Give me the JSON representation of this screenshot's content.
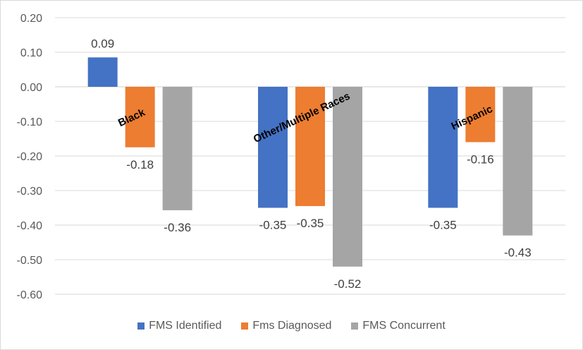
{
  "chart_data": {
    "type": "bar",
    "title": "",
    "xlabel": "",
    "ylabel": "",
    "ylim": [
      -0.6,
      0.2
    ],
    "y_ticks": [
      "0.20",
      "0.10",
      "0.00",
      "-0.10",
      "-0.20",
      "-0.30",
      "-0.40",
      "-0.50",
      "-0.60"
    ],
    "categories": [
      "Black",
      "Other/Multiple Races",
      "Hispanic"
    ],
    "series": [
      {
        "name": "FMS Identified",
        "color": "#4472C4",
        "values": [
          0.085,
          -0.35,
          -0.35
        ],
        "labels": [
          "0.09",
          "-0.35",
          "-0.35"
        ]
      },
      {
        "name": "Fms Diagnosed",
        "color": "#ED7D31",
        "values": [
          -0.175,
          -0.345,
          -0.16
        ],
        "labels": [
          "-0.18",
          "-0.35",
          "-0.16"
        ]
      },
      {
        "name": "FMS Concurrent",
        "color": "#A5A5A5",
        "values": [
          -0.357,
          -0.52,
          -0.43
        ],
        "labels": [
          "-0.36",
          "-0.52",
          "-0.43"
        ]
      }
    ],
    "grid": true,
    "legend_position": "bottom"
  }
}
